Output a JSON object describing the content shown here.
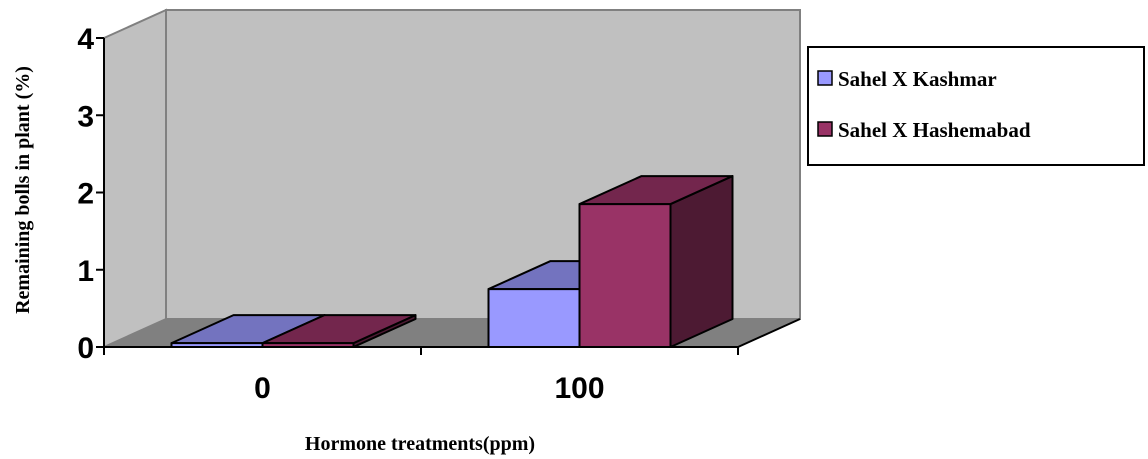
{
  "chart_data": {
    "type": "bar",
    "style": "3d-clustered-column",
    "categories": [
      "0",
      "100"
    ],
    "series": [
      {
        "name": "Sahel X Kashmar",
        "values": [
          0.05,
          0.75
        ],
        "color": "#9999ff"
      },
      {
        "name": "Sahel X Hashemabad",
        "values": [
          0.05,
          1.85
        ],
        "color": "#993366"
      }
    ],
    "xlabel": "Hormone treatments(ppm)",
    "ylabel": "Remaining bolls in plant (%)",
    "ylim": [
      0,
      4
    ],
    "yticks": [
      "0",
      "1",
      "2",
      "3",
      "4"
    ],
    "grid": false,
    "legend_position": "right",
    "colors": {
      "wall": "#c0c0c0",
      "floor": "#808080",
      "axis": "#000000"
    }
  }
}
